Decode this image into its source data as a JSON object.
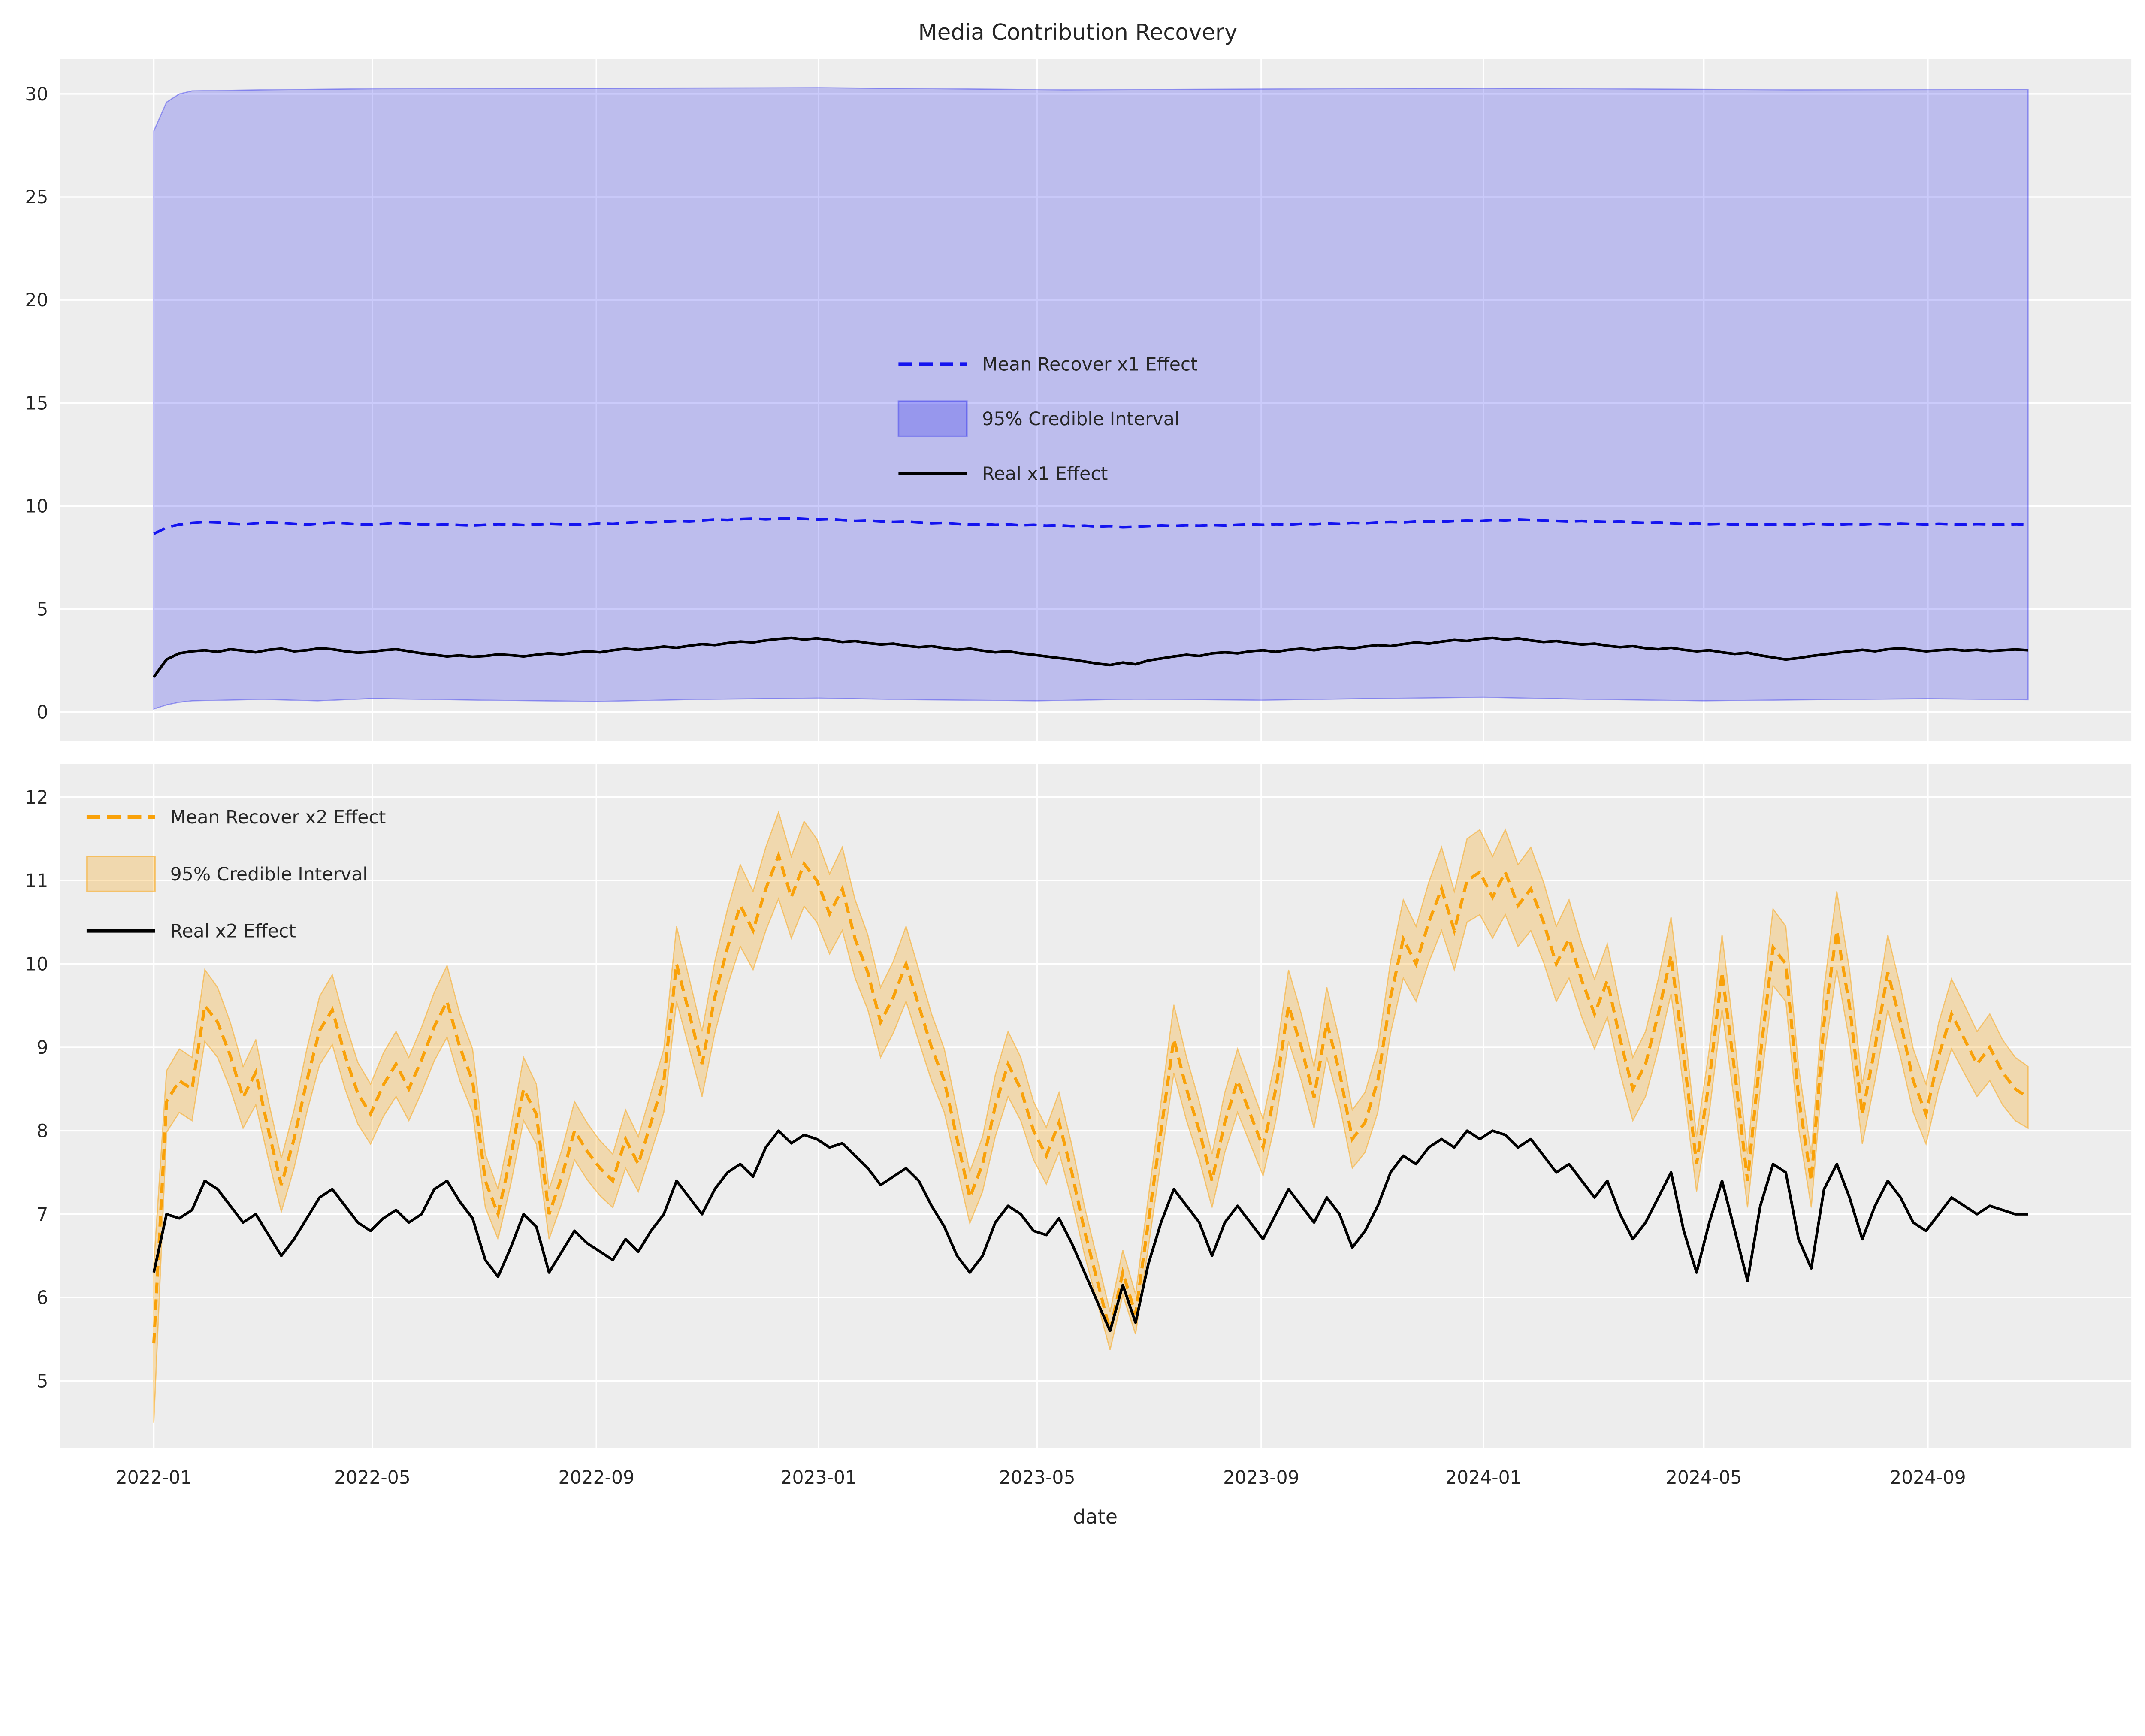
{
  "title": "Media Contribution Recovery",
  "colors": {
    "figure_background": "#FFFFFF",
    "axes_background": "#EDEDED",
    "gridline": "#FFFFFF",
    "x1_mean_line": "#1414EF",
    "x1_band_fill": "rgba(20,20,239,0.22)",
    "x1_band_edge": "rgba(20,20,239,0.35)",
    "x2_mean_line": "#F9A109",
    "x2_band_fill": "rgba(249,161,9,0.28)",
    "x2_band_edge": "rgba(249,161,9,0.5)",
    "real_line": "#000000",
    "text": "#262626"
  },
  "x_axis": {
    "label": "date",
    "tick_labels": [
      "2022-01",
      "2022-05",
      "2022-09",
      "2023-01",
      "2023-05",
      "2023-09",
      "2024-01",
      "2024-05",
      "2024-09"
    ]
  },
  "chart_data": [
    {
      "type": "line",
      "panel": "top",
      "x_unit": "days since 2022-01-01, weekly step 7",
      "x_step_days": 7,
      "xlim_days": [
        -51.7,
        1085.7
      ],
      "ylim": [
        -1.4,
        31.7
      ],
      "yticks": [
        0,
        5,
        10,
        15,
        20,
        25,
        30
      ],
      "grid": true,
      "legend": {
        "position": "center",
        "entries": [
          {
            "label": "Mean Recover x1 Effect",
            "handle": "dash",
            "color": "#1414EF"
          },
          {
            "label": "95% Credible Interval",
            "handle": "patch",
            "fill": "rgba(20,20,239,0.22)",
            "edge": "rgba(20,20,239,0.35)"
          },
          {
            "label": "Real x1 Effect",
            "handle": "line",
            "color": "#000000"
          }
        ]
      },
      "series": [
        {
          "name": "Mean Recover x1 Effect",
          "style": "dashed",
          "color": "#1414EF",
          "values": [
            8.65,
            8.95,
            9.1,
            9.18,
            9.22,
            9.2,
            9.15,
            9.12,
            9.16,
            9.2,
            9.18,
            9.14,
            9.1,
            9.15,
            9.19,
            9.16,
            9.12,
            9.1,
            9.14,
            9.18,
            9.15,
            9.11,
            9.08,
            9.1,
            9.07,
            9.05,
            9.08,
            9.12,
            9.1,
            9.07,
            9.1,
            9.14,
            9.12,
            9.09,
            9.12,
            9.16,
            9.14,
            9.18,
            9.22,
            9.2,
            9.24,
            9.28,
            9.26,
            9.3,
            9.34,
            9.32,
            9.36,
            9.38,
            9.35,
            9.38,
            9.4,
            9.37,
            9.34,
            9.36,
            9.32,
            9.28,
            9.3,
            9.26,
            9.22,
            9.24,
            9.2,
            9.16,
            9.18,
            9.14,
            9.1,
            9.12,
            9.08,
            9.1,
            9.06,
            9.08,
            9.04,
            9.06,
            9.02,
            9.04,
            9.0,
            9.02,
            8.98,
            9.0,
            9.02,
            9.05,
            9.03,
            9.06,
            9.04,
            9.07,
            9.05,
            9.08,
            9.1,
            9.08,
            9.12,
            9.1,
            9.14,
            9.12,
            9.16,
            9.14,
            9.18,
            9.16,
            9.2,
            9.22,
            9.2,
            9.24,
            9.26,
            9.24,
            9.28,
            9.3,
            9.28,
            9.32,
            9.3,
            9.34,
            9.32,
            9.3,
            9.28,
            9.26,
            9.28,
            9.24,
            9.22,
            9.24,
            9.2,
            9.18,
            9.2,
            9.16,
            9.14,
            9.16,
            9.12,
            9.14,
            9.1,
            9.12,
            9.08,
            9.1,
            9.12,
            9.1,
            9.14,
            9.12,
            9.1,
            9.13,
            9.11,
            9.14,
            9.12,
            9.15,
            9.13,
            9.11,
            9.14,
            9.12,
            9.1,
            9.13,
            9.11,
            9.09,
            9.12,
            9.1
          ]
        },
        {
          "name": "Real x1 Effect",
          "style": "solid",
          "color": "#000000",
          "values": [
            1.7,
            2.55,
            2.85,
            2.95,
            3.0,
            2.92,
            3.05,
            2.98,
            2.9,
            3.02,
            3.08,
            2.95,
            3.0,
            3.1,
            3.05,
            2.95,
            2.88,
            2.92,
            3.0,
            3.05,
            2.95,
            2.85,
            2.78,
            2.7,
            2.75,
            2.68,
            2.72,
            2.8,
            2.76,
            2.7,
            2.78,
            2.85,
            2.8,
            2.88,
            2.95,
            2.9,
            3.0,
            3.08,
            3.02,
            3.1,
            3.18,
            3.12,
            3.22,
            3.3,
            3.25,
            3.35,
            3.42,
            3.38,
            3.48,
            3.55,
            3.6,
            3.52,
            3.58,
            3.5,
            3.4,
            3.45,
            3.35,
            3.28,
            3.32,
            3.22,
            3.15,
            3.2,
            3.1,
            3.02,
            3.08,
            2.98,
            2.9,
            2.95,
            2.85,
            2.78,
            2.7,
            2.62,
            2.55,
            2.45,
            2.35,
            2.28,
            2.4,
            2.32,
            2.5,
            2.6,
            2.7,
            2.78,
            2.72,
            2.85,
            2.9,
            2.85,
            2.95,
            3.0,
            2.92,
            3.02,
            3.08,
            3.0,
            3.1,
            3.15,
            3.08,
            3.18,
            3.25,
            3.2,
            3.3,
            3.38,
            3.32,
            3.42,
            3.5,
            3.45,
            3.55,
            3.6,
            3.52,
            3.58,
            3.48,
            3.4,
            3.45,
            3.35,
            3.28,
            3.32,
            3.22,
            3.15,
            3.2,
            3.1,
            3.05,
            3.12,
            3.02,
            2.95,
            3.0,
            2.9,
            2.82,
            2.88,
            2.75,
            2.65,
            2.55,
            2.62,
            2.72,
            2.8,
            2.88,
            2.95,
            3.02,
            2.95,
            3.05,
            3.1,
            3.02,
            2.95,
            3.0,
            3.05,
            2.98,
            3.02,
            2.96,
            3.0,
            3.04,
            3.0
          ]
        },
        {
          "name": "95% Credible Interval",
          "style": "band",
          "upper_x_days": [
            0,
            7,
            14,
            21,
            60,
            120,
            365,
            500,
            730,
            900,
            1029
          ],
          "upper": [
            28.2,
            29.6,
            30.0,
            30.15,
            30.2,
            30.25,
            30.3,
            30.2,
            30.28,
            30.2,
            30.22
          ],
          "lower_x_days": [
            0,
            7,
            14,
            21,
            60,
            90,
            120,
            180,
            243,
            300,
            365,
            420,
            485,
            540,
            608,
            670,
            730,
            790,
            851,
            910,
            974,
            1029
          ],
          "lower": [
            0.15,
            0.35,
            0.48,
            0.55,
            0.62,
            0.55,
            0.66,
            0.58,
            0.52,
            0.62,
            0.68,
            0.6,
            0.55,
            0.63,
            0.58,
            0.66,
            0.72,
            0.62,
            0.55,
            0.6,
            0.65,
            0.6
          ]
        }
      ]
    },
    {
      "type": "line",
      "panel": "bottom",
      "xlabel": "date",
      "x_unit": "days since 2022-01-01, weekly step 7",
      "x_step_days": 7,
      "xlim_days": [
        -51.7,
        1085.7
      ],
      "ylim": [
        4.2,
        12.4
      ],
      "yticks": [
        5,
        6,
        7,
        8,
        9,
        10,
        11,
        12
      ],
      "grid": true,
      "x_ticks": [
        {
          "day": 0,
          "label": "2022-01"
        },
        {
          "day": 120,
          "label": "2022-05"
        },
        {
          "day": 243,
          "label": "2022-09"
        },
        {
          "day": 365,
          "label": "2023-01"
        },
        {
          "day": 485,
          "label": "2023-05"
        },
        {
          "day": 608,
          "label": "2023-09"
        },
        {
          "day": 730,
          "label": "2024-01"
        },
        {
          "day": 851,
          "label": "2024-05"
        },
        {
          "day": 974,
          "label": "2024-09"
        }
      ],
      "legend": {
        "position": "upper left",
        "entries": [
          {
            "label": "Mean Recover x2 Effect",
            "handle": "dash",
            "color": "#F9A109"
          },
          {
            "label": "95% Credible Interval",
            "handle": "patch",
            "fill": "rgba(249,161,9,0.28)",
            "edge": "rgba(249,161,9,0.5)"
          },
          {
            "label": "Real x2 Effect",
            "handle": "line",
            "color": "#000000"
          }
        ]
      },
      "series": [
        {
          "name": "Mean Recover x2 Effect",
          "style": "dashed",
          "color": "#F9A109",
          "values": [
            5.45,
            8.35,
            8.6,
            8.5,
            9.5,
            9.3,
            8.9,
            8.4,
            8.7,
            8.0,
            7.35,
            7.9,
            8.6,
            9.2,
            9.45,
            8.9,
            8.45,
            8.2,
            8.55,
            8.8,
            8.5,
            8.85,
            9.25,
            9.55,
            9.0,
            8.6,
            7.4,
            7.0,
            7.7,
            8.5,
            8.2,
            7.0,
            7.45,
            8.0,
            7.75,
            7.55,
            7.4,
            7.9,
            7.6,
            8.1,
            8.6,
            10.0,
            9.4,
            8.8,
            9.6,
            10.2,
            10.7,
            10.4,
            10.9,
            11.3,
            10.8,
            11.2,
            11.0,
            10.6,
            10.9,
            10.3,
            9.9,
            9.3,
            9.6,
            10.0,
            9.5,
            9.0,
            8.6,
            7.9,
            7.2,
            7.6,
            8.3,
            8.8,
            8.5,
            8.0,
            7.7,
            8.1,
            7.5,
            6.8,
            6.2,
            5.6,
            6.3,
            5.8,
            6.9,
            8.0,
            9.1,
            8.5,
            8.0,
            7.4,
            8.1,
            8.6,
            8.2,
            7.8,
            8.5,
            9.5,
            9.0,
            8.4,
            9.3,
            8.7,
            7.9,
            8.1,
            8.6,
            9.6,
            10.3,
            10.0,
            10.5,
            10.9,
            10.4,
            11.0,
            11.1,
            10.8,
            11.1,
            10.7,
            10.9,
            10.5,
            10.0,
            10.3,
            9.8,
            9.4,
            9.8,
            9.1,
            8.5,
            8.8,
            9.4,
            10.1,
            8.9,
            7.6,
            8.6,
            9.9,
            8.7,
            7.4,
            8.9,
            10.2,
            10.0,
            8.4,
            7.4,
            9.3,
            10.4,
            9.5,
            8.2,
            9.0,
            9.9,
            9.3,
            8.6,
            8.2,
            8.9,
            9.4,
            9.1,
            8.8,
            9.0,
            8.7,
            8.5,
            8.4
          ]
        },
        {
          "name": "Real x2 Effect",
          "style": "solid",
          "color": "#000000",
          "values": [
            6.3,
            7.0,
            6.95,
            7.05,
            7.4,
            7.3,
            7.1,
            6.9,
            7.0,
            6.75,
            6.5,
            6.7,
            6.95,
            7.2,
            7.3,
            7.1,
            6.9,
            6.8,
            6.95,
            7.05,
            6.9,
            7.0,
            7.3,
            7.4,
            7.15,
            6.95,
            6.45,
            6.25,
            6.6,
            7.0,
            6.85,
            6.3,
            6.55,
            6.8,
            6.65,
            6.55,
            6.45,
            6.7,
            6.55,
            6.8,
            7.0,
            7.4,
            7.2,
            7.0,
            7.3,
            7.5,
            7.6,
            7.45,
            7.8,
            8.0,
            7.85,
            7.95,
            7.9,
            7.8,
            7.85,
            7.7,
            7.55,
            7.35,
            7.45,
            7.55,
            7.4,
            7.1,
            6.85,
            6.5,
            6.3,
            6.5,
            6.9,
            7.1,
            7.0,
            6.8,
            6.75,
            6.95,
            6.65,
            6.3,
            5.95,
            5.6,
            6.15,
            5.7,
            6.4,
            6.9,
            7.3,
            7.1,
            6.9,
            6.5,
            6.9,
            7.1,
            6.9,
            6.7,
            7.0,
            7.3,
            7.1,
            6.9,
            7.2,
            7.0,
            6.6,
            6.8,
            7.1,
            7.5,
            7.7,
            7.6,
            7.8,
            7.9,
            7.8,
            8.0,
            7.9,
            8.0,
            7.95,
            7.8,
            7.9,
            7.7,
            7.5,
            7.6,
            7.4,
            7.2,
            7.4,
            7.0,
            6.7,
            6.9,
            7.2,
            7.5,
            6.8,
            6.3,
            6.9,
            7.4,
            6.8,
            6.2,
            7.1,
            7.6,
            7.5,
            6.7,
            6.35,
            7.3,
            7.6,
            7.2,
            6.7,
            7.1,
            7.4,
            7.2,
            6.9,
            6.8,
            7.0,
            7.2,
            7.1,
            7.0,
            7.1,
            7.05,
            7.0,
            7.0
          ]
        },
        {
          "name": "95% Credible Interval",
          "style": "band_halfwidth",
          "halfwidth": [
            0.95,
            0.37,
            0.38,
            0.38,
            0.43,
            0.42,
            0.4,
            0.37,
            0.39,
            0.35,
            0.32,
            0.35,
            0.38,
            0.41,
            0.42,
            0.4,
            0.37,
            0.36,
            0.38,
            0.39,
            0.38,
            0.39,
            0.41,
            0.43,
            0.4,
            0.38,
            0.32,
            0.3,
            0.34,
            0.38,
            0.36,
            0.3,
            0.32,
            0.35,
            0.34,
            0.33,
            0.32,
            0.35,
            0.33,
            0.36,
            0.38,
            0.45,
            0.42,
            0.39,
            0.43,
            0.46,
            0.49,
            0.47,
            0.5,
            0.52,
            0.49,
            0.51,
            0.5,
            0.48,
            0.5,
            0.47,
            0.45,
            0.42,
            0.43,
            0.45,
            0.43,
            0.4,
            0.38,
            0.35,
            0.31,
            0.33,
            0.37,
            0.39,
            0.38,
            0.35,
            0.34,
            0.36,
            0.33,
            0.29,
            0.26,
            0.23,
            0.27,
            0.24,
            0.3,
            0.35,
            0.41,
            0.38,
            0.35,
            0.32,
            0.36,
            0.38,
            0.36,
            0.34,
            0.38,
            0.43,
            0.4,
            0.37,
            0.42,
            0.39,
            0.35,
            0.36,
            0.38,
            0.43,
            0.47,
            0.45,
            0.48,
            0.5,
            0.47,
            0.5,
            0.51,
            0.49,
            0.51,
            0.49,
            0.5,
            0.48,
            0.45,
            0.47,
            0.44,
            0.42,
            0.44,
            0.41,
            0.38,
            0.39,
            0.42,
            0.46,
            0.4,
            0.33,
            0.38,
            0.45,
            0.39,
            0.32,
            0.4,
            0.46,
            0.45,
            0.37,
            0.32,
            0.42,
            0.47,
            0.43,
            0.36,
            0.4,
            0.45,
            0.42,
            0.38,
            0.36,
            0.4,
            0.42,
            0.41,
            0.39,
            0.4,
            0.39,
            0.38,
            0.37
          ]
        }
      ]
    }
  ]
}
